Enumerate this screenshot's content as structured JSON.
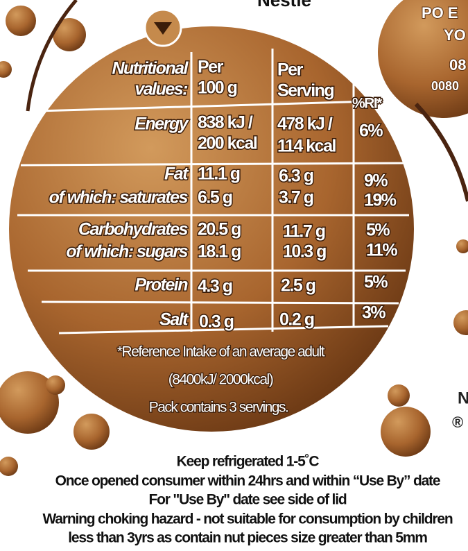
{
  "brand": "Nestle",
  "side_text": [
    "PO E",
    "YO",
    "08",
    "0080",
    "N",
    "®"
  ],
  "table": {
    "header": [
      [
        "Nutritional",
        "values:"
      ],
      [
        "Per",
        "100 g"
      ],
      [
        "Per",
        "Serving"
      ],
      "%RI*"
    ],
    "rows": [
      [
        "Energy",
        [
          "838 kJ /",
          "200 kcal"
        ],
        [
          "478 kJ /",
          "114 kcal"
        ],
        "6%"
      ],
      [
        "Fat",
        "11.1 g",
        "6.3 g",
        "9%"
      ],
      [
        "of which: saturates",
        "6.5 g",
        "3.7 g",
        "19%"
      ],
      [
        "Carbohydrates",
        "20.5 g",
        "11.7 g",
        "5%"
      ],
      [
        "of which: sugars",
        "18.1 g",
        "10.3 g",
        "11%"
      ],
      [
        "Protein",
        "4.3 g",
        "2.5 g",
        "5%"
      ],
      [
        "Salt",
        "0.3 g",
        "0.2 g",
        "3%"
      ]
    ]
  },
  "footnote": [
    "*Reference Intake of an average adult",
    "(8400kJ/ 2000kcal)",
    "Pack contains 3 servings."
  ],
  "storage_notes": [
    "Keep refrigerated 1-5˚C",
    "Once opened consumer within 24hrs and within “Use By” date",
    "For \"Use By\" date see side of lid",
    "Warning choking hazard - not suitable for consumption by children",
    "less than 3yrs as contain nut pieces size greater than 5mm"
  ]
}
